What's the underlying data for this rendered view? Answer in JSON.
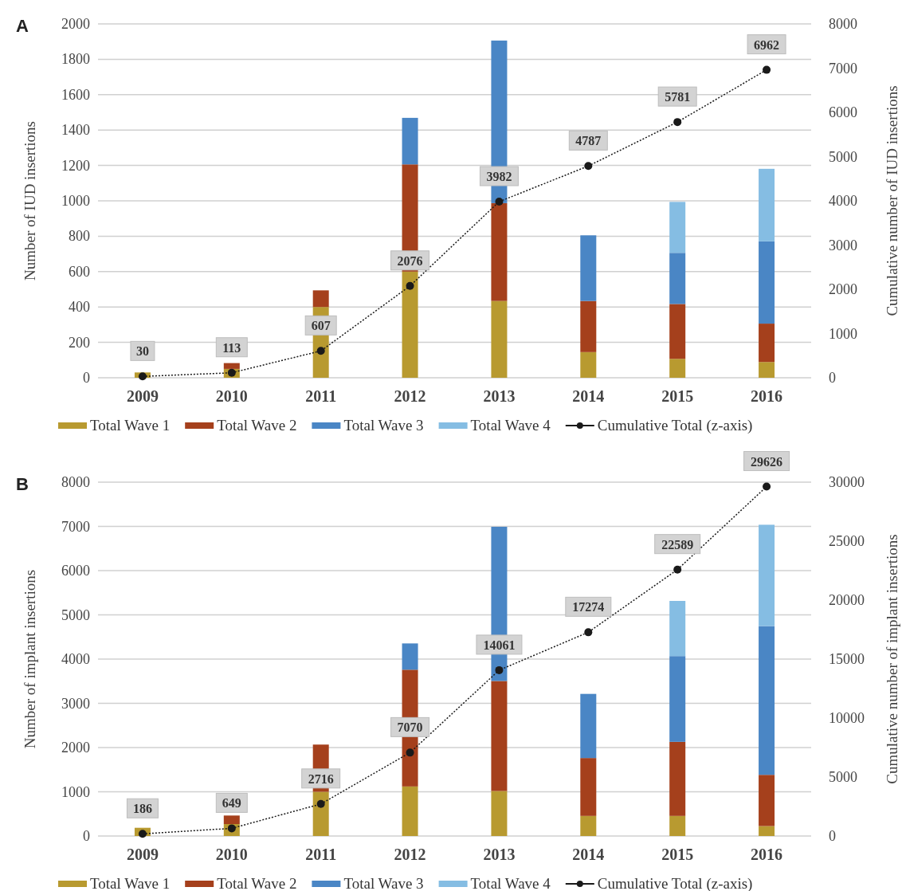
{
  "chart_data": [
    {
      "type": "bar",
      "title": "A",
      "stacked": true,
      "categories": [
        "2009",
        "2010",
        "2011",
        "2012",
        "2013",
        "2014",
        "2015",
        "2016"
      ],
      "ylabel": "Number of IUD insertions",
      "y2label": "Cumulative number of IUD insertions",
      "ylim": [
        0,
        2000
      ],
      "yticks": [
        0,
        200,
        400,
        600,
        800,
        1000,
        1200,
        1400,
        1600,
        1800,
        2000
      ],
      "y2lim": [
        0,
        8000
      ],
      "y2ticks": [
        0,
        1000,
        2000,
        3000,
        4000,
        5000,
        6000,
        7000,
        8000
      ],
      "grid": "y",
      "legend": "bottom",
      "series": [
        {
          "name": "Total Wave 1",
          "color": "#b89a30",
          "values": [
            30,
            50,
            400,
            600,
            434,
            145,
            107,
            89
          ]
        },
        {
          "name": "Total Wave 2",
          "color": "#a5401c",
          "values": [
            null,
            33,
            94,
            606,
            553,
            289,
            310,
            217
          ]
        },
        {
          "name": "Total Wave 3",
          "color": "#4a86c5",
          "values": [
            null,
            null,
            null,
            263,
            919,
            371,
            289,
            465
          ]
        },
        {
          "name": "Total Wave 4",
          "color": "#85bde3",
          "values": [
            null,
            null,
            null,
            null,
            null,
            null,
            288,
            410
          ]
        },
        {
          "name": "Cumulative Total (z-axis)",
          "type": "line",
          "axis": "y2",
          "color": "#1a1a1a",
          "marker": "circle",
          "line_style": "dotted",
          "values": [
            30,
            113,
            607,
            2076,
            3982,
            4787,
            5781,
            6962
          ],
          "value_labels": [
            "30",
            "113",
            "607",
            "2076",
            "3982",
            "4787",
            "5781",
            "6962"
          ]
        }
      ]
    },
    {
      "type": "bar",
      "title": "B",
      "stacked": true,
      "categories": [
        "2009",
        "2010",
        "2011",
        "2012",
        "2013",
        "2014",
        "2015",
        "2016"
      ],
      "ylabel": "Number of implant insertions",
      "y2label": "Cumulative number of implant insertions",
      "ylim": [
        0,
        8000
      ],
      "yticks": [
        0,
        1000,
        2000,
        3000,
        4000,
        5000,
        6000,
        7000,
        8000
      ],
      "y2lim": [
        0,
        30000
      ],
      "y2ticks": [
        0,
        5000,
        10000,
        15000,
        20000,
        25000,
        30000
      ],
      "grid": "y",
      "legend": "bottom",
      "series": [
        {
          "name": "Total Wave 1",
          "color": "#b89a30",
          "values": [
            186,
            270,
            1000,
            1120,
            1017,
            454,
            454,
            224
          ]
        },
        {
          "name": "Total Wave 2",
          "color": "#a5401c",
          "values": [
            null,
            193,
            1067,
            2640,
            2488,
            1309,
            1675,
            1159
          ]
        },
        {
          "name": "Total Wave 3",
          "color": "#4a86c5",
          "values": [
            null,
            null,
            null,
            594,
            3486,
            1450,
            1939,
            3363
          ]
        },
        {
          "name": "Total Wave 4",
          "color": "#85bde3",
          "values": [
            null,
            null,
            null,
            null,
            null,
            null,
            1247,
            2291
          ]
        },
        {
          "name": "Cumulative Total (z-axis)",
          "type": "line",
          "axis": "y2",
          "color": "#1a1a1a",
          "marker": "circle",
          "line_style": "dotted",
          "values": [
            186,
            649,
            2716,
            7070,
            14061,
            17274,
            22589,
            29626
          ],
          "value_labels": [
            "186",
            "649",
            "2716",
            "7070",
            "14061",
            "17274",
            "22589",
            "29626"
          ]
        }
      ]
    }
  ]
}
